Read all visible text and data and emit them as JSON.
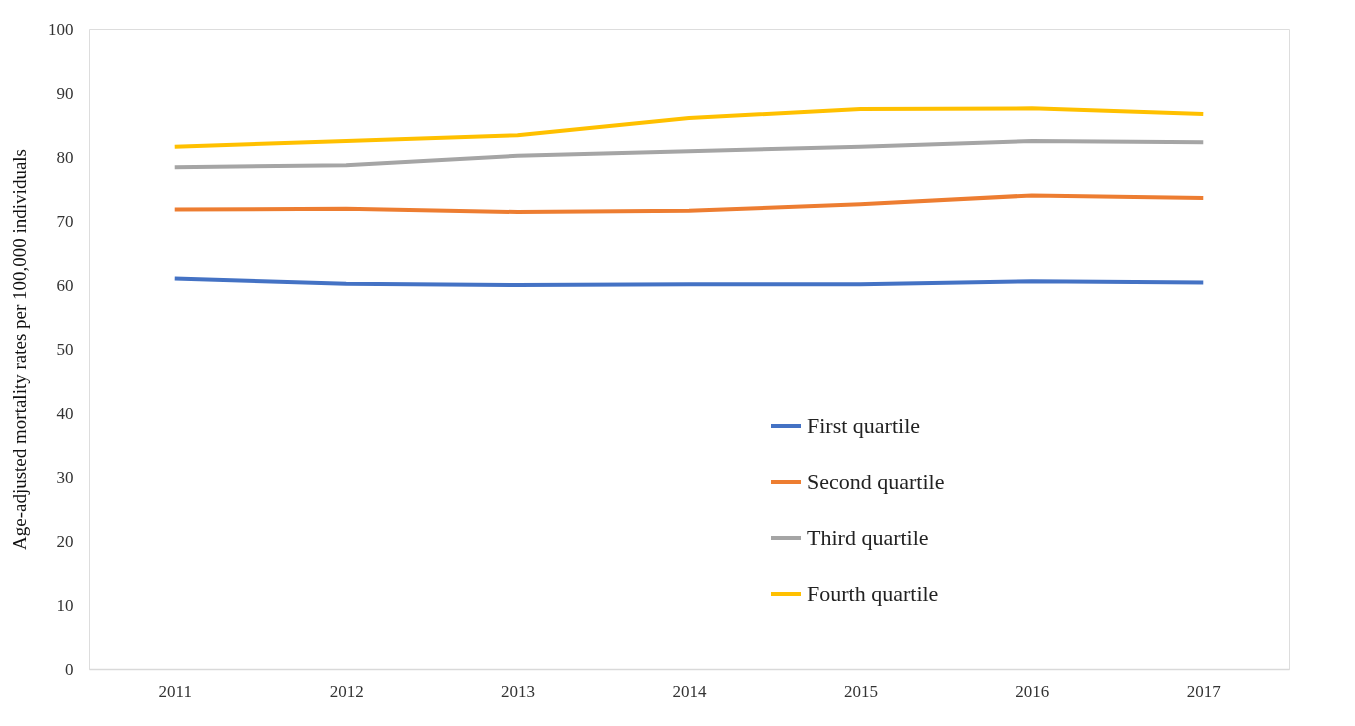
{
  "chart_data": {
    "type": "line",
    "ylabel": "Age-adjusted  mortality rates per 100,000 individuals",
    "categories": [
      "2011",
      "2012",
      "2013",
      "2014",
      "2015",
      "2016",
      "2017"
    ],
    "series": [
      {
        "name": "First quartile",
        "color": "#4472c4",
        "values": [
          61.0,
          60.2,
          60.0,
          60.1,
          60.1,
          60.6,
          60.4
        ]
      },
      {
        "name": "Second quartile",
        "color": "#ed7d31",
        "values": [
          71.8,
          71.9,
          71.4,
          71.6,
          72.6,
          74.0,
          73.6
        ]
      },
      {
        "name": "Third quartile",
        "color": "#a5a5a5",
        "values": [
          78.4,
          78.7,
          80.2,
          80.9,
          81.6,
          82.5,
          82.3
        ]
      },
      {
        "name": "Fourth quartile",
        "color": "#ffc000",
        "values": [
          81.6,
          82.5,
          83.4,
          86.1,
          87.5,
          87.6,
          86.7
        ]
      }
    ],
    "ylim": [
      0,
      100
    ],
    "yticks": [
      0,
      10,
      20,
      30,
      40,
      50,
      60,
      70,
      80,
      90,
      100
    ],
    "grid": false,
    "legend": "bottom right",
    "marker": "none",
    "line_style": "solid"
  }
}
